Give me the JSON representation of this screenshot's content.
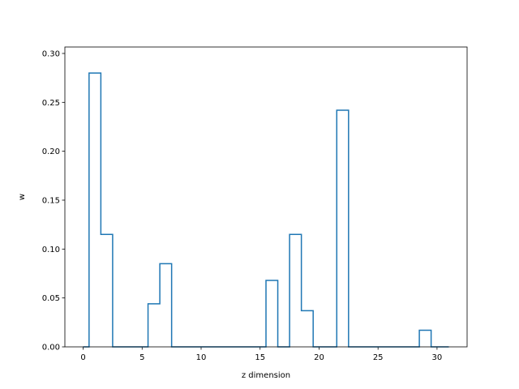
{
  "chart_data": {
    "type": "step",
    "title": "",
    "xlabel": "z dimension",
    "ylabel": "w",
    "xlim": [
      -1.55,
      32.55
    ],
    "ylim": [
      0,
      0.3066
    ],
    "grid": false,
    "line_color": "#1f77b4",
    "x_ticks": [
      0,
      5,
      10,
      15,
      20,
      25,
      30
    ],
    "x_tick_labels": [
      "0",
      "5",
      "10",
      "15",
      "20",
      "25",
      "30"
    ],
    "y_ticks": [
      0,
      0.05,
      0.1,
      0.15,
      0.2,
      0.25,
      0.3
    ],
    "y_tick_labels": [
      "0.00",
      "0.05",
      "0.10",
      "0.15",
      "0.20",
      "0.25",
      "0.30"
    ],
    "x": [
      0,
      1,
      2,
      3,
      4,
      5,
      6,
      7,
      8,
      9,
      10,
      11,
      12,
      13,
      14,
      15,
      16,
      17,
      18,
      19,
      20,
      21,
      22,
      23,
      24,
      25,
      26,
      27,
      28,
      29,
      30,
      31
    ],
    "values": [
      0,
      0.28,
      0.115,
      0,
      0,
      0,
      0.044,
      0.085,
      0,
      0,
      0,
      0,
      0,
      0,
      0,
      0,
      0.068,
      0,
      0.115,
      0.037,
      0,
      0,
      0.242,
      0,
      0,
      0,
      0,
      0,
      0,
      0.017,
      0,
      0
    ]
  }
}
